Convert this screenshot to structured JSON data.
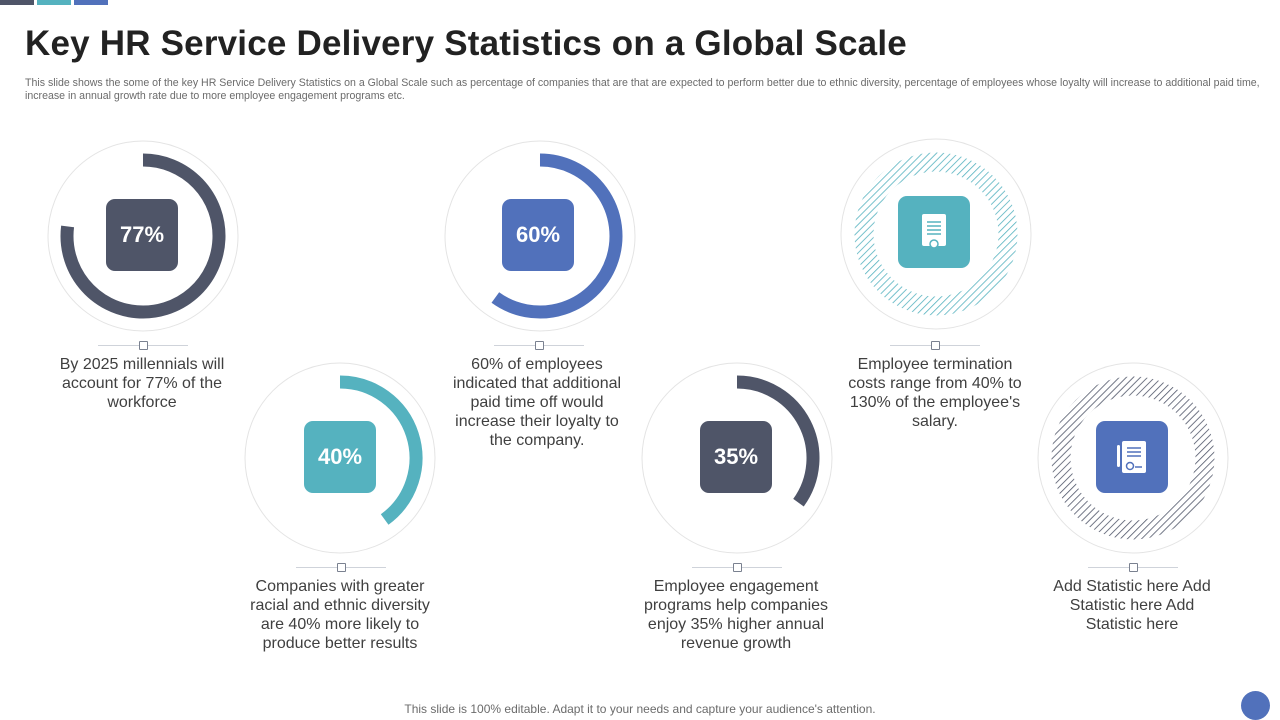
{
  "header": {
    "title": "Key HR Service Delivery Statistics on a Global Scale",
    "subtitle": "This slide shows the some of the key HR Service Delivery Statistics on a Global Scale such as percentage of companies that are that are expected to perform better due to ethnic diversity, percentage of employees whose loyalty will increase to additional paid time, increase in annual growth rate due to more employee engagement programs etc."
  },
  "colors": {
    "dark": "#4f5568",
    "blue": "#5171bb",
    "teal": "#55b2bf",
    "ring_outline": "#e4e4e4"
  },
  "stats": [
    {
      "id": "s1",
      "percent_text": "77%",
      "value": 77,
      "color": "dark",
      "label": "By 2025 millennials will account for 77% of the workforce"
    },
    {
      "id": "s2",
      "percent_text": "60%",
      "value": 60,
      "color": "blue",
      "label": "60% of employees indicated that additional paid time off would increase their loyalty to the company."
    },
    {
      "id": "s3",
      "icon": "certificate-document-icon",
      "color": "teal",
      "label": "Employee termination costs range from 40% to 130% of the employee's salary."
    },
    {
      "id": "s4",
      "percent_text": "40%",
      "value": 40,
      "color": "teal",
      "label": "Companies with greater racial and ethnic diversity are 40% more likely to produce better results"
    },
    {
      "id": "s5",
      "percent_text": "35%",
      "value": 35,
      "color": "dark",
      "label": "Employee engagement programs help companies enjoy 35% higher annual revenue growth"
    },
    {
      "id": "s6",
      "icon": "contract-document-icon",
      "color": "blue",
      "label": "Add Statistic here Add Statistic here Add Statistic here"
    }
  ],
  "footer": {
    "text": "This slide is 100% editable. Adapt it to your needs and capture your audience's attention."
  }
}
